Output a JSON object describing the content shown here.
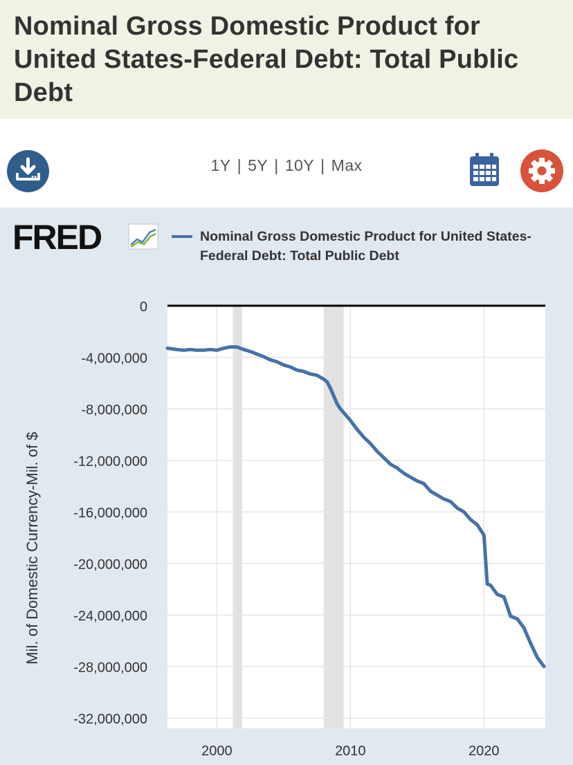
{
  "header": {
    "title": "Nominal Gross Domestic Product for United States-Federal Debt: Total Public Debt"
  },
  "toolbar": {
    "download_icon": "download-icon",
    "ranges": [
      "1Y",
      "5Y",
      "10Y",
      "Max"
    ],
    "calendar_icon": "calendar-icon",
    "settings_icon": "gear-icon",
    "colors": {
      "download": "#2f5d8c",
      "calendar": "#3a64a0",
      "settings": "#d9533b"
    }
  },
  "brand": {
    "logo_text": "FRED"
  },
  "chart_data": {
    "type": "line",
    "title": "Nominal Gross Domestic Product for United States-Federal Debt: Total Public Debt",
    "ylabel": "Mil. of Domestic Currency-Mil. of $",
    "xlabel": "",
    "xlim": [
      1996.3,
      2024.6
    ],
    "ylim": [
      -32800000,
      0
    ],
    "x_ticks": [
      2000,
      2010,
      2020
    ],
    "x_tick_labels": [
      "2000",
      "2010",
      "2020"
    ],
    "y_ticks": [
      0,
      -4000000,
      -8000000,
      -12000000,
      -16000000,
      -20000000,
      -24000000,
      -28000000,
      -32000000
    ],
    "y_tick_labels": [
      "0",
      "-4,000,000",
      "-8,000,000",
      "-12,000,000",
      "-16,000,000",
      "-20,000,000",
      "-24,000,000",
      "-28,000,000",
      "-32,000,000"
    ],
    "grid": true,
    "legend_position": "top",
    "line_color": "#4572a7",
    "recessions": [
      [
        2001.2,
        2001.9
      ],
      [
        2008.0,
        2009.5
      ]
    ],
    "series": [
      {
        "name": "Nominal Gross Domestic Product for United States-Federal Debt: Total Public Debt",
        "x": [
          1996.3,
          1997.0,
          1997.5,
          1998.0,
          1998.5,
          1999.0,
          1999.5,
          2000.0,
          2000.5,
          2001.0,
          2001.5,
          2002.0,
          2002.5,
          2003.0,
          2003.5,
          2004.0,
          2004.5,
          2005.0,
          2005.5,
          2006.0,
          2006.5,
          2007.0,
          2007.5,
          2008.0,
          2008.25,
          2008.5,
          2008.75,
          2009.0,
          2009.25,
          2009.5,
          2010.0,
          2010.5,
          2011.0,
          2011.5,
          2012.0,
          2012.5,
          2013.0,
          2013.5,
          2014.0,
          2014.5,
          2015.0,
          2015.5,
          2016.0,
          2016.5,
          2017.0,
          2017.5,
          2018.0,
          2018.5,
          2019.0,
          2019.5,
          2020.0,
          2020.25,
          2020.5,
          2021.0,
          2021.5,
          2022.0,
          2022.5,
          2023.0,
          2023.5,
          2024.0,
          2024.5
        ],
        "y": [
          -3300000,
          -3400000,
          -3450000,
          -3400000,
          -3450000,
          -3450000,
          -3400000,
          -3450000,
          -3300000,
          -3200000,
          -3200000,
          -3400000,
          -3550000,
          -3750000,
          -3950000,
          -4200000,
          -4350000,
          -4600000,
          -4750000,
          -5000000,
          -5100000,
          -5300000,
          -5400000,
          -5700000,
          -5900000,
          -6400000,
          -7000000,
          -7600000,
          -8000000,
          -8300000,
          -8900000,
          -9600000,
          -10200000,
          -10700000,
          -11300000,
          -11800000,
          -12300000,
          -12600000,
          -13000000,
          -13300000,
          -13600000,
          -13800000,
          -14400000,
          -14700000,
          -15000000,
          -15200000,
          -15700000,
          -16000000,
          -16600000,
          -17000000,
          -17800000,
          -21600000,
          -21700000,
          -22400000,
          -22600000,
          -24100000,
          -24300000,
          -25000000,
          -26200000,
          -27300000,
          -28000000
        ]
      }
    ]
  }
}
